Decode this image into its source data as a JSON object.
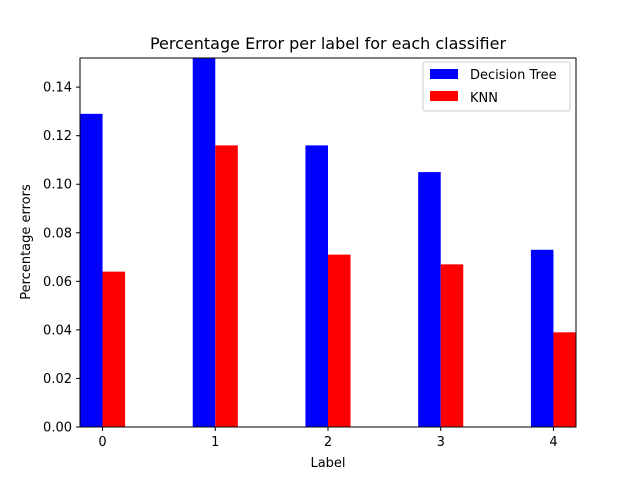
{
  "chart_data": {
    "type": "bar",
    "title": "Percentage Error per label for each classifier",
    "xlabel": "Label",
    "ylabel": "Percentage errors",
    "categories": [
      "0",
      "1",
      "2",
      "3",
      "4"
    ],
    "series": [
      {
        "name": "Decision Tree",
        "color": "#0000ff",
        "values": [
          0.129,
          0.152,
          0.116,
          0.105,
          0.073
        ]
      },
      {
        "name": "KNN",
        "color": "#ff0000",
        "values": [
          0.064,
          0.116,
          0.071,
          0.067,
          0.039
        ]
      }
    ],
    "ylim": [
      0,
      0.152
    ],
    "yticks": [
      "0.00",
      "0.02",
      "0.04",
      "0.06",
      "0.08",
      "0.10",
      "0.12",
      "0.14"
    ],
    "grid": false,
    "legend_position": "top-right"
  }
}
